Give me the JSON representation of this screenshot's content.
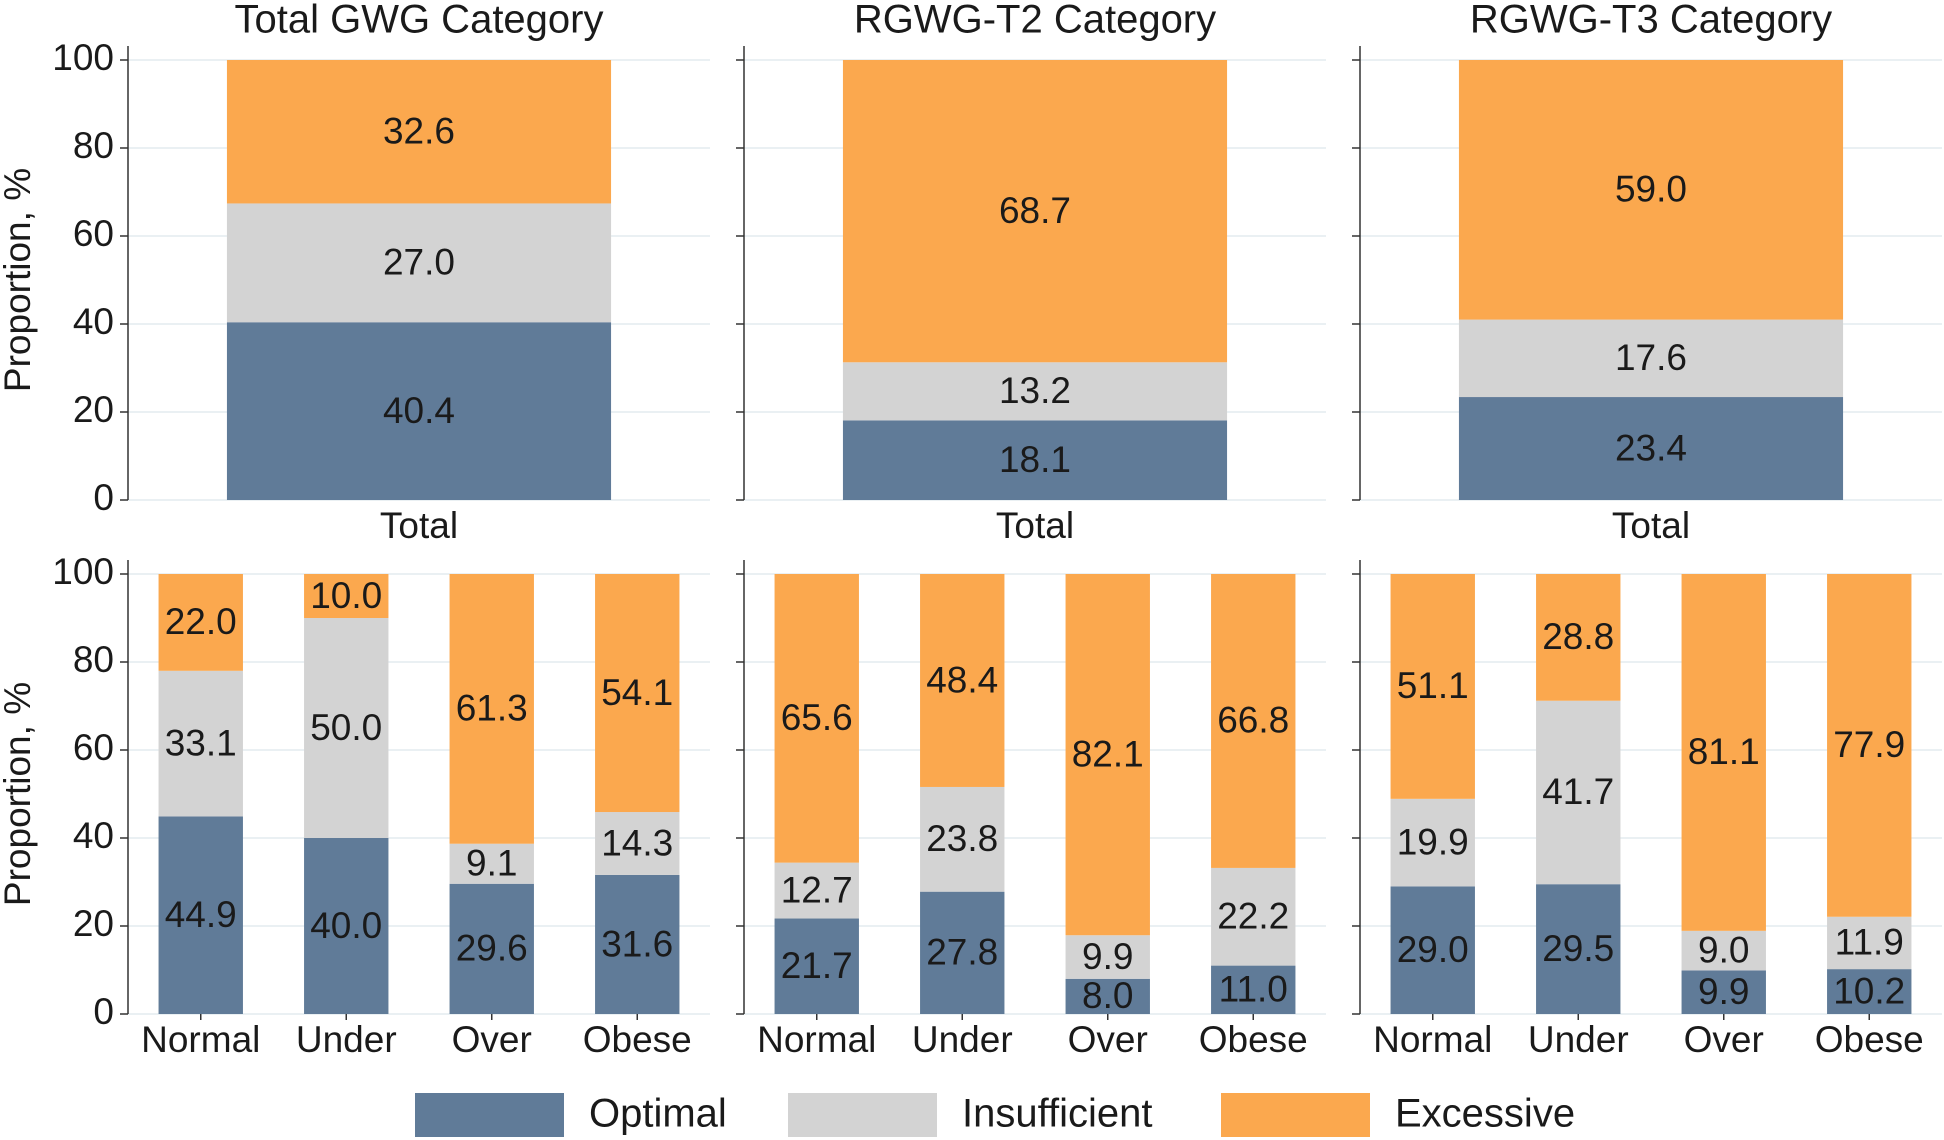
{
  "chart_data": [
    {
      "type": "stacked_bar",
      "title": "Total GWG Category",
      "ylabel": "Proportion, %",
      "categories": [
        "Total"
      ],
      "ylim": [
        0,
        100
      ],
      "yticks": [
        0,
        20,
        40,
        60,
        80,
        100
      ],
      "grid": true,
      "series": [
        {
          "name": "Optimal",
          "color": "#607b98",
          "values": [
            40.4
          ],
          "value_labels": [
            "40.4"
          ]
        },
        {
          "name": "Insufficient",
          "color": "#d3d3d3",
          "values": [
            27.0
          ],
          "value_labels": [
            "27.0"
          ]
        },
        {
          "name": "Excessive",
          "color": "#fba84e",
          "values": [
            32.6
          ],
          "value_labels": [
            "32.6"
          ]
        }
      ]
    },
    {
      "type": "stacked_bar",
      "title": "RGWG-T2 Category",
      "categories": [
        "Total"
      ],
      "ylim": [
        0,
        100
      ],
      "yticks": [
        0,
        20,
        40,
        60,
        80,
        100
      ],
      "grid": true,
      "series": [
        {
          "name": "Optimal",
          "color": "#607b98",
          "values": [
            18.1
          ],
          "value_labels": [
            "18.1"
          ]
        },
        {
          "name": "Insufficient",
          "color": "#d3d3d3",
          "values": [
            13.2
          ],
          "value_labels": [
            "13.2"
          ]
        },
        {
          "name": "Excessive",
          "color": "#fba84e",
          "values": [
            68.7
          ],
          "value_labels": [
            "68.7"
          ]
        }
      ]
    },
    {
      "type": "stacked_bar",
      "title": "RGWG-T3 Category",
      "categories": [
        "Total"
      ],
      "ylim": [
        0,
        100
      ],
      "yticks": [
        0,
        20,
        40,
        60,
        80,
        100
      ],
      "grid": true,
      "series": [
        {
          "name": "Optimal",
          "color": "#607b98",
          "values": [
            23.4
          ],
          "value_labels": [
            "23.4"
          ]
        },
        {
          "name": "Insufficient",
          "color": "#d3d3d3",
          "values": [
            17.6
          ],
          "value_labels": [
            "17.6"
          ]
        },
        {
          "name": "Excessive",
          "color": "#fba84e",
          "values": [
            59.0
          ],
          "value_labels": [
            "59.0"
          ]
        }
      ]
    },
    {
      "type": "stacked_bar",
      "ylabel": "Proportion, %",
      "categories": [
        "Normal",
        "Under",
        "Over",
        "Obese"
      ],
      "ylim": [
        0,
        100
      ],
      "yticks": [
        0,
        20,
        40,
        60,
        80,
        100
      ],
      "grid": true,
      "series": [
        {
          "name": "Optimal",
          "color": "#607b98",
          "values": [
            44.9,
            40.0,
            29.6,
            31.6
          ],
          "value_labels": [
            "44.9",
            "40.0",
            "29.6",
            "31.6"
          ]
        },
        {
          "name": "Insufficient",
          "color": "#d3d3d3",
          "values": [
            33.1,
            50.0,
            9.1,
            14.3
          ],
          "value_labels": [
            "33.1",
            "50.0",
            "9.1",
            "14.3"
          ]
        },
        {
          "name": "Excessive",
          "color": "#fba84e",
          "values": [
            22.0,
            10.0,
            61.3,
            54.1
          ],
          "value_labels": [
            "22.0",
            "10.0",
            "61.3",
            "54.1"
          ]
        }
      ]
    },
    {
      "type": "stacked_bar",
      "categories": [
        "Normal",
        "Under",
        "Over",
        "Obese"
      ],
      "ylim": [
        0,
        100
      ],
      "yticks": [
        0,
        20,
        40,
        60,
        80,
        100
      ],
      "grid": true,
      "series": [
        {
          "name": "Optimal",
          "color": "#607b98",
          "values": [
            21.7,
            27.8,
            8.0,
            11.0
          ],
          "value_labels": [
            "21.7",
            "27.8",
            "8.0",
            "11.0"
          ]
        },
        {
          "name": "Insufficient",
          "color": "#d3d3d3",
          "values": [
            12.7,
            23.8,
            9.9,
            22.2
          ],
          "value_labels": [
            "12.7",
            "23.8",
            "9.9",
            "22.2"
          ]
        },
        {
          "name": "Excessive",
          "color": "#fba84e",
          "values": [
            65.6,
            48.4,
            82.1,
            66.8
          ],
          "value_labels": [
            "65.6",
            "48.4",
            "82.1",
            "66.8"
          ]
        }
      ]
    },
    {
      "type": "stacked_bar",
      "categories": [
        "Normal",
        "Under",
        "Over",
        "Obese"
      ],
      "ylim": [
        0,
        100
      ],
      "yticks": [
        0,
        20,
        40,
        60,
        80,
        100
      ],
      "grid": true,
      "series": [
        {
          "name": "Optimal",
          "color": "#607b98",
          "values": [
            29.0,
            29.5,
            9.9,
            10.2
          ],
          "value_labels": [
            "29.0",
            "29.5",
            "9.9",
            "10.2"
          ]
        },
        {
          "name": "Insufficient",
          "color": "#d3d3d3",
          "values": [
            19.9,
            41.7,
            9.0,
            11.9
          ],
          "value_labels": [
            "19.9",
            "41.7",
            "9.0",
            "11.9"
          ]
        },
        {
          "name": "Excessive",
          "color": "#fba84e",
          "values": [
            51.1,
            28.8,
            81.1,
            77.9
          ],
          "value_labels": [
            "51.1",
            "28.8",
            "81.1",
            "77.9"
          ]
        }
      ]
    }
  ]
}
